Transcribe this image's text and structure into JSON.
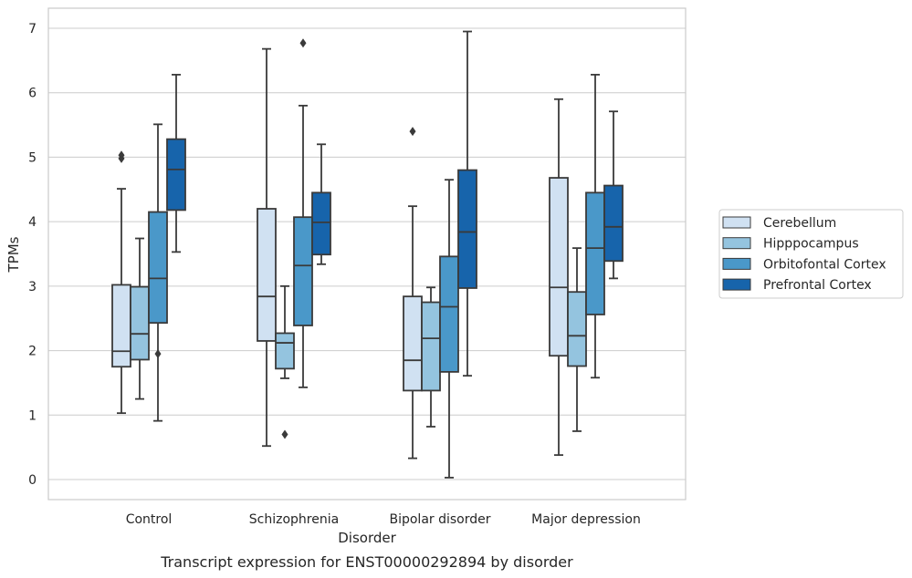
{
  "chart_data": {
    "type": "box",
    "title": "",
    "caption": "Transcript expression for ENST00000292894 by disorder",
    "xlabel": "Disorder",
    "ylabel": "TPMs",
    "ylim": [
      -0.3,
      7.3
    ],
    "yticks": [
      0,
      1,
      2,
      3,
      4,
      5,
      6,
      7
    ],
    "grid": "horizontal",
    "legend_position": "right",
    "categories": [
      "Control",
      "Schizophrenia",
      "Bipolar disorder",
      "Major depression"
    ],
    "series": [
      {
        "name": "Cerebellum",
        "color": "#d0e1f2",
        "boxes": [
          {
            "whislo": 1.03,
            "q1": 1.75,
            "med": 1.99,
            "q3": 3.02,
            "whishi": 4.51,
            "fliers": [
              4.98,
              5.03
            ]
          },
          {
            "whislo": 0.52,
            "q1": 2.15,
            "med": 2.84,
            "q3": 4.2,
            "whishi": 6.68,
            "fliers": []
          },
          {
            "whislo": 0.33,
            "q1": 1.38,
            "med": 1.85,
            "q3": 2.84,
            "whishi": 4.24,
            "fliers": [
              5.4
            ]
          },
          {
            "whislo": 0.38,
            "q1": 1.92,
            "med": 2.98,
            "q3": 4.68,
            "whishi": 5.9,
            "fliers": []
          }
        ]
      },
      {
        "name": "Hipppocampus",
        "color": "#94c4df",
        "boxes": [
          {
            "whislo": 1.25,
            "q1": 1.86,
            "med": 2.26,
            "q3": 2.99,
            "whishi": 3.74,
            "fliers": []
          },
          {
            "whislo": 1.57,
            "q1": 1.72,
            "med": 2.12,
            "q3": 2.27,
            "whishi": 3.0,
            "fliers": [
              0.7
            ]
          },
          {
            "whislo": 0.82,
            "q1": 1.38,
            "med": 2.19,
            "q3": 2.75,
            "whishi": 2.98,
            "fliers": []
          },
          {
            "whislo": 0.75,
            "q1": 1.76,
            "med": 2.23,
            "q3": 2.91,
            "whishi": 3.59,
            "fliers": []
          }
        ]
      },
      {
        "name": "Orbitofontal Cortex",
        "color": "#4a98c9",
        "boxes": [
          {
            "whislo": 0.91,
            "q1": 2.43,
            "med": 3.12,
            "q3": 4.15,
            "whishi": 5.51,
            "fliers": [
              1.95
            ]
          },
          {
            "whislo": 1.43,
            "q1": 2.39,
            "med": 3.32,
            "q3": 4.07,
            "whishi": 5.8,
            "fliers": [
              6.77
            ]
          },
          {
            "whislo": 0.03,
            "q1": 1.67,
            "med": 2.68,
            "q3": 3.46,
            "whishi": 4.65,
            "fliers": []
          },
          {
            "whislo": 1.58,
            "q1": 2.56,
            "med": 3.59,
            "q3": 4.45,
            "whishi": 6.28,
            "fliers": []
          }
        ]
      },
      {
        "name": "Prefrontal Cortex",
        "color": "#1764ab",
        "boxes": [
          {
            "whislo": 3.53,
            "q1": 4.18,
            "med": 4.81,
            "q3": 5.28,
            "whishi": 6.28,
            "fliers": []
          },
          {
            "whislo": 3.34,
            "q1": 3.49,
            "med": 3.99,
            "q3": 4.45,
            "whishi": 5.2,
            "fliers": []
          },
          {
            "whislo": 1.61,
            "q1": 2.97,
            "med": 3.84,
            "q3": 4.8,
            "whishi": 6.95,
            "fliers": []
          },
          {
            "whislo": 3.12,
            "q1": 3.39,
            "med": 3.92,
            "q3": 4.56,
            "whishi": 5.71,
            "fliers": []
          }
        ]
      }
    ]
  }
}
